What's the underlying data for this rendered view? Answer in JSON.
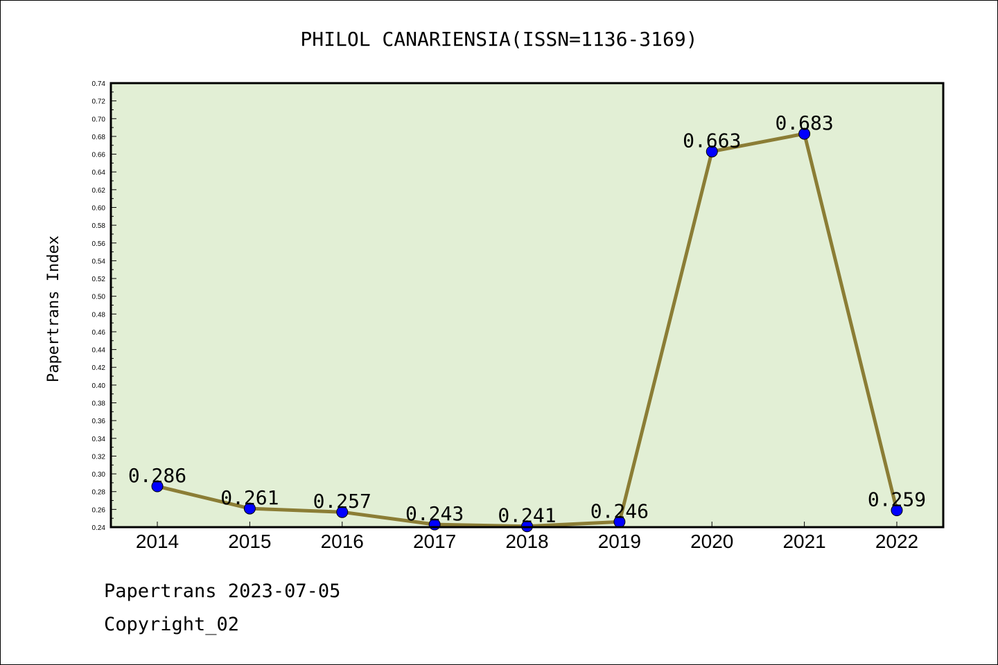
{
  "chart_data": {
    "type": "line",
    "title": "PHILOL CANARIENSIA(ISSN=1136-3169)",
    "xlabel": "",
    "ylabel": "Papertrans Index",
    "categories": [
      "2014",
      "2015",
      "2016",
      "2017",
      "2018",
      "2019",
      "2020",
      "2021",
      "2022"
    ],
    "series": [
      {
        "values": [
          0.286,
          0.261,
          0.257,
          0.243,
          0.241,
          0.246,
          0.663,
          0.683,
          0.259
        ],
        "labels": [
          "0.286",
          "0.261",
          "0.257",
          "0.243",
          "0.241",
          "0.246",
          "0.663",
          "0.683",
          "0.259"
        ]
      }
    ],
    "ylim": [
      0.24,
      0.74
    ],
    "yticks": [
      "0.24",
      "0.26",
      "0.28",
      "0.30",
      "0.32",
      "0.34",
      "0.36",
      "0.38",
      "0.40",
      "0.42",
      "0.44",
      "0.46",
      "0.48",
      "0.50",
      "0.52",
      "0.54",
      "0.56",
      "0.58",
      "0.60",
      "0.62",
      "0.64",
      "0.66",
      "0.68",
      "0.70",
      "0.72",
      "0.74"
    ],
    "grid": false,
    "colors": {
      "plot_background": "#e2efd5",
      "line": "#8b7d35",
      "marker": "#0000ff"
    }
  },
  "footer": {
    "date_text": "Papertrans 2023-07-05",
    "copyright_text": "Copyright_02"
  }
}
